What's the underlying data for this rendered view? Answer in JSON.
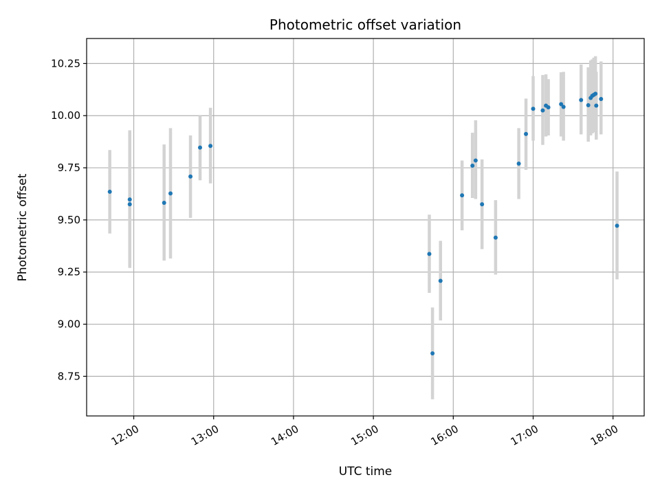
{
  "chart_data": {
    "type": "scatter",
    "title": "Photometric offset variation",
    "xlabel": "UTC time",
    "ylabel": "Photometric offset",
    "x_unit": "hours UTC",
    "xlim": [
      11.41,
      18.39
    ],
    "ylim": [
      8.56,
      10.37
    ],
    "grid": true,
    "x_ticks": [
      {
        "value": 12,
        "label": "12:00"
      },
      {
        "value": 13,
        "label": "13:00"
      },
      {
        "value": 14,
        "label": "14:00"
      },
      {
        "value": 15,
        "label": "15:00"
      },
      {
        "value": 16,
        "label": "16:00"
      },
      {
        "value": 17,
        "label": "17:00"
      },
      {
        "value": 18,
        "label": "18:00"
      }
    ],
    "y_ticks": [
      {
        "value": 8.75,
        "label": "8.75"
      },
      {
        "value": 9.0,
        "label": "9.00"
      },
      {
        "value": 9.25,
        "label": "9.25"
      },
      {
        "value": 9.5,
        "label": "9.50"
      },
      {
        "value": 9.75,
        "label": "9.75"
      },
      {
        "value": 10.0,
        "label": "10.00"
      },
      {
        "value": 10.25,
        "label": "10.25"
      }
    ],
    "point_color": "#1f77b4",
    "errorbar_color": "#d3d3d3",
    "points": [
      {
        "x": 11.7,
        "y": 9.635,
        "ylow": 9.435,
        "yhigh": 9.835
      },
      {
        "x": 11.95,
        "y": 9.598,
        "ylow": 9.27,
        "yhigh": 9.93
      },
      {
        "x": 11.95,
        "y": 9.575,
        "ylow": 9.27,
        "yhigh": 9.93
      },
      {
        "x": 12.38,
        "y": 9.582,
        "ylow": 9.305,
        "yhigh": 9.862
      },
      {
        "x": 12.46,
        "y": 9.627,
        "ylow": 9.315,
        "yhigh": 9.94
      },
      {
        "x": 12.71,
        "y": 9.708,
        "ylow": 9.51,
        "yhigh": 9.905
      },
      {
        "x": 12.83,
        "y": 9.847,
        "ylow": 9.69,
        "yhigh": 10.0
      },
      {
        "x": 12.96,
        "y": 9.855,
        "ylow": 9.675,
        "yhigh": 10.038
      },
      {
        "x": 15.7,
        "y": 9.337,
        "ylow": 9.15,
        "yhigh": 9.525
      },
      {
        "x": 15.74,
        "y": 8.86,
        "ylow": 8.64,
        "yhigh": 9.08
      },
      {
        "x": 15.84,
        "y": 9.208,
        "ylow": 9.018,
        "yhigh": 9.4
      },
      {
        "x": 16.11,
        "y": 9.618,
        "ylow": 9.45,
        "yhigh": 9.785
      },
      {
        "x": 16.24,
        "y": 9.76,
        "ylow": 9.605,
        "yhigh": 9.918
      },
      {
        "x": 16.28,
        "y": 9.785,
        "ylow": 9.6,
        "yhigh": 9.978
      },
      {
        "x": 16.36,
        "y": 9.575,
        "ylow": 9.36,
        "yhigh": 9.79
      },
      {
        "x": 16.53,
        "y": 9.415,
        "ylow": 9.238,
        "yhigh": 9.595
      },
      {
        "x": 16.82,
        "y": 9.77,
        "ylow": 9.6,
        "yhigh": 9.94
      },
      {
        "x": 16.91,
        "y": 9.912,
        "ylow": 9.74,
        "yhigh": 10.082
      },
      {
        "x": 17.0,
        "y": 10.033,
        "ylow": 9.88,
        "yhigh": 10.19
      },
      {
        "x": 17.12,
        "y": 10.025,
        "ylow": 9.86,
        "yhigh": 10.195
      },
      {
        "x": 17.16,
        "y": 10.048,
        "ylow": 9.9,
        "yhigh": 10.198
      },
      {
        "x": 17.19,
        "y": 10.04,
        "ylow": 9.905,
        "yhigh": 10.175
      },
      {
        "x": 17.35,
        "y": 10.055,
        "ylow": 9.9,
        "yhigh": 10.208
      },
      {
        "x": 17.38,
        "y": 10.042,
        "ylow": 9.88,
        "yhigh": 10.21
      },
      {
        "x": 17.6,
        "y": 10.075,
        "ylow": 9.91,
        "yhigh": 10.245
      },
      {
        "x": 17.69,
        "y": 10.05,
        "ylow": 9.875,
        "yhigh": 10.232
      },
      {
        "x": 17.72,
        "y": 10.085,
        "ylow": 9.905,
        "yhigh": 10.265
      },
      {
        "x": 17.74,
        "y": 10.095,
        "ylow": 9.915,
        "yhigh": 10.27
      },
      {
        "x": 17.76,
        "y": 10.1,
        "ylow": 9.92,
        "yhigh": 10.278
      },
      {
        "x": 17.78,
        "y": 10.105,
        "ylow": 9.92,
        "yhigh": 10.285
      },
      {
        "x": 17.79,
        "y": 10.048,
        "ylow": 9.885,
        "yhigh": 10.21
      },
      {
        "x": 17.85,
        "y": 10.08,
        "ylow": 9.91,
        "yhigh": 10.26
      },
      {
        "x": 18.05,
        "y": 9.472,
        "ylow": 9.215,
        "yhigh": 9.732
      }
    ]
  }
}
